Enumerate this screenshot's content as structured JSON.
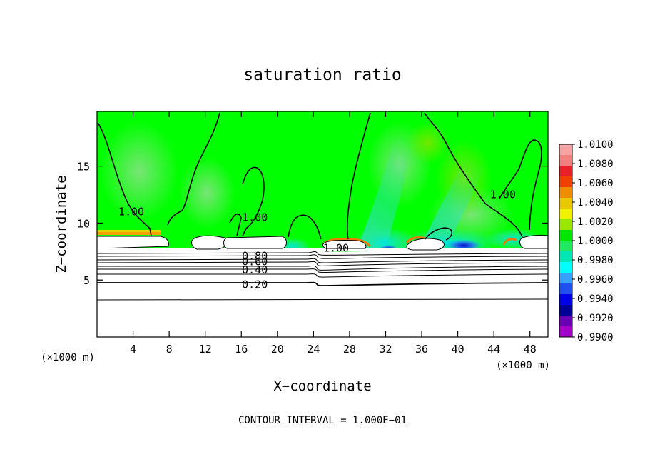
{
  "chart_data": {
    "type": "heatmap",
    "title": "saturation ratio",
    "xlabel": "X−coordinate",
    "ylabel": "Z−coordinate",
    "x_unit_left": "(×1000 m)",
    "x_unit_right": "(×1000 m)",
    "xlim": [
      0,
      50
    ],
    "ylim": [
      0,
      19.8
    ],
    "x_ticks": [
      4,
      8,
      12,
      16,
      20,
      24,
      28,
      32,
      36,
      40,
      44,
      48
    ],
    "x_tick_labels": [
      "4",
      "8",
      "12",
      "16",
      "20",
      "24",
      "28",
      "32",
      "36",
      "40",
      "44",
      "48"
    ],
    "y_ticks": [
      5,
      10,
      15
    ],
    "y_tick_labels": [
      "5",
      "10",
      "15"
    ],
    "colorbar": {
      "labels": [
        "1.0100",
        "1.0080",
        "1.0060",
        "1.0040",
        "1.0020",
        "1.0000",
        "0.9980",
        "0.9960",
        "0.9940",
        "0.9920",
        "0.9900"
      ],
      "colors": [
        "#f5a3a3",
        "#f08080",
        "#e8202a",
        "#f04000",
        "#f08c00",
        "#e8c800",
        "#f0f000",
        "#9ae600",
        "#00e600",
        "#20e860",
        "#00e6b4",
        "#00ffff",
        "#38a0ff",
        "#2050f0",
        "#0000e6",
        "#000096",
        "#6a00b4",
        "#a000c8"
      ]
    },
    "contour_interval_text": "CONTOUR INTERVAL = 1.000E−01",
    "contour_labels": [
      {
        "text": "1.00",
        "x": 3.8,
        "z": 11.0
      },
      {
        "text": "1.00",
        "x": 17.5,
        "z": 10.5
      },
      {
        "text": "1.00",
        "x": 26.5,
        "z": 7.8
      },
      {
        "text": "1.00",
        "x": 45.0,
        "z": 12.5
      },
      {
        "text": "0.80",
        "x": 17.5,
        "z": 7.1
      },
      {
        "text": "0.60",
        "x": 17.5,
        "z": 6.6
      },
      {
        "text": "0.40",
        "x": 17.5,
        "z": 5.9
      },
      {
        "text": "0.20",
        "x": 17.5,
        "z": 4.6
      }
    ],
    "legend": "right",
    "grid": false
  }
}
